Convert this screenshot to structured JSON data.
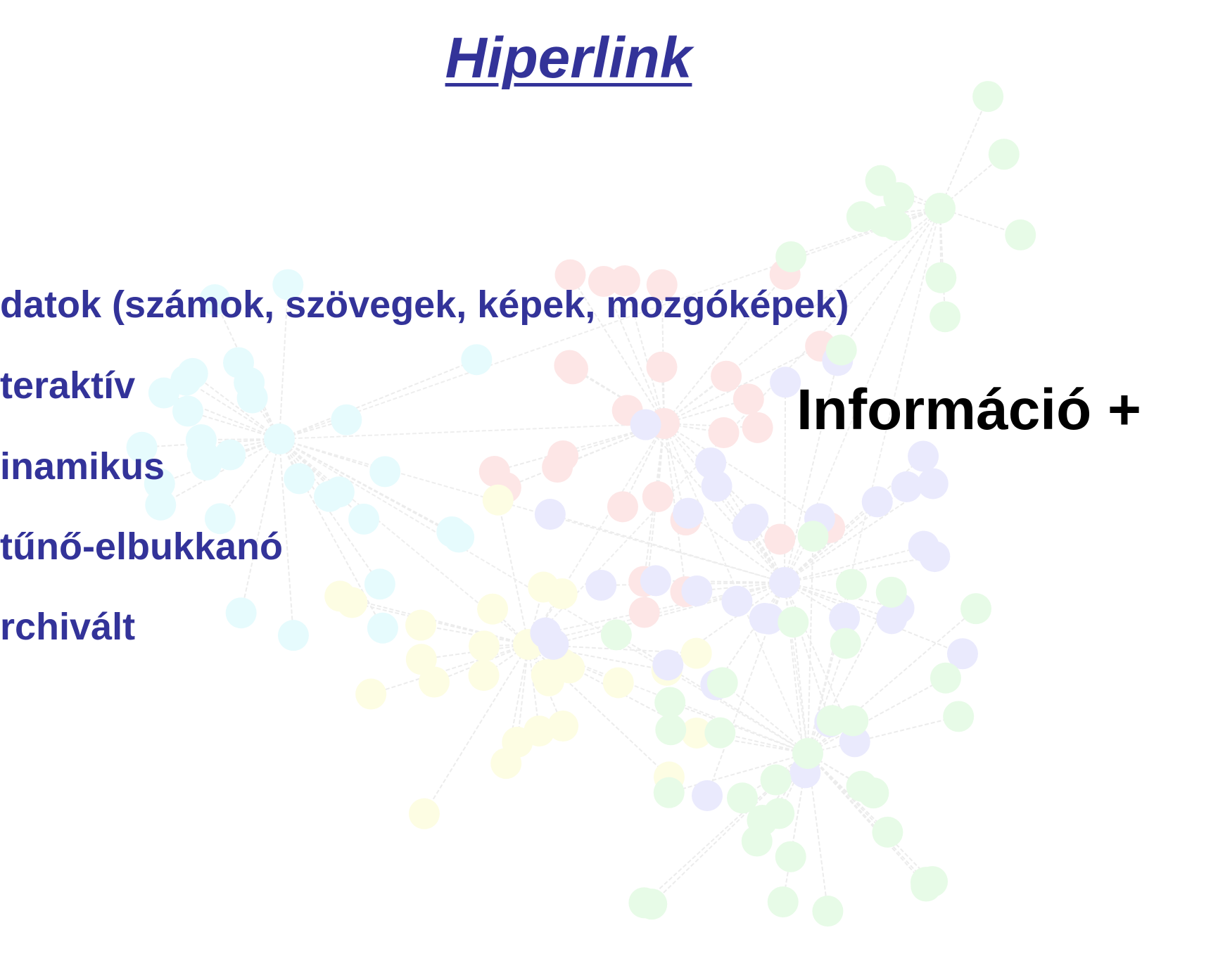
{
  "slide": {
    "title": "Hiperlink",
    "items": [
      "datok (számok, szövegek, képek, mozgóképek)",
      "teraktív",
      "inamikus",
      "tűnő-elbukkanó",
      "rchivált"
    ],
    "side_text": "Információ +"
  }
}
